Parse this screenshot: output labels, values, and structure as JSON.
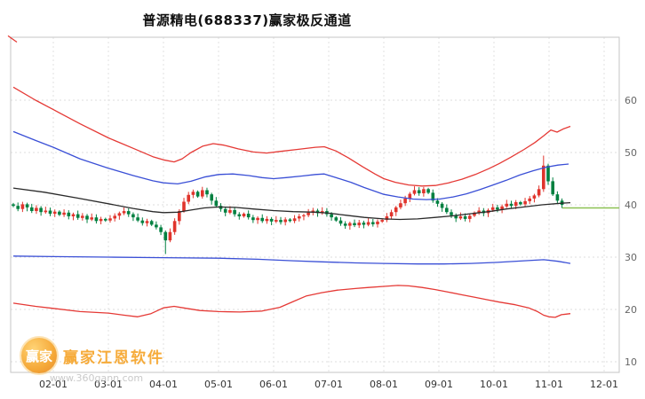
{
  "page": {
    "title": "普源精电(688337)赢家极反通道"
  },
  "watermark": {
    "brand": "赢家江恩软件",
    "url": "www.360gann.com",
    "logo_text": "赢家",
    "brand_color": "#f6a42a",
    "url_color": "#c5c5c5"
  },
  "chart_data": {
    "type": "candlestick",
    "title": "普源精电(688337)赢家极反通道",
    "stock_name": "普源精电",
    "symbol": "688337",
    "indicator": "赢家极反通道",
    "grid": true,
    "legend_position": "none",
    "y_axis": {
      "min": 10,
      "max": 75,
      "ticks": [
        60,
        50,
        40,
        30,
        20,
        10
      ],
      "position": "right"
    },
    "x_axis": {
      "ticks": [
        "02-01",
        "03-01",
        "04-01",
        "05-01",
        "06-01",
        "07-01",
        "08-01",
        "09-01",
        "10-01",
        "11-01",
        "12-01"
      ]
    },
    "candles": {
      "up_color": "#e0342c",
      "down_color": "#008040",
      "closes": [
        39.8,
        39.2,
        40.1,
        39.5,
        38.8,
        39.4,
        38.6,
        38.9,
        38.3,
        38.7,
        38.1,
        38.5,
        37.8,
        38.2,
        37.5,
        37.9,
        37.2,
        37.6,
        36.9,
        37.3,
        37.0,
        37.4,
        37.9,
        38.4,
        38.8,
        38.2,
        37.6,
        37.0,
        36.5,
        36.9,
        36.2,
        35.7,
        34.8,
        33.2,
        34.8,
        36.9,
        38.8,
        40.6,
        41.9,
        42.5,
        41.6,
        42.8,
        42.0,
        40.8,
        39.8,
        39.2,
        38.5,
        39.0,
        38.2,
        37.8,
        38.3,
        37.6,
        37.1,
        37.5,
        36.9,
        37.3,
        36.8,
        37.1,
        36.7,
        37.2,
        36.9,
        37.4,
        37.8,
        38.0,
        38.5,
        38.9,
        38.4,
        38.8,
        38.2,
        37.6,
        37.0,
        36.4,
        36.0,
        36.5,
        36.1,
        36.6,
        36.2,
        36.7,
        36.3,
        36.8,
        37.1,
        37.8,
        38.6,
        39.5,
        40.3,
        41.2,
        42.1,
        42.8,
        42.2,
        43.0,
        42.3,
        40.8,
        40.2,
        39.4,
        38.6,
        38.0,
        37.4,
        37.8,
        37.3,
        37.9,
        38.5,
        38.9,
        38.4,
        39.0,
        39.5,
        39.1,
        39.7,
        40.2,
        39.8,
        40.5,
        40.1,
        40.7,
        41.2,
        41.8,
        43.0,
        47.5,
        44.5,
        42.0,
        40.8,
        40.0
      ],
      "overrides": {
        "33": {
          "low": 30.6
        },
        "115": {
          "high": 49.4
        }
      }
    },
    "series": [
      {
        "name": "upper-channel-red",
        "color": "#e53935",
        "points": [
          [
            15,
            62.5
          ],
          [
            40,
            60.0
          ],
          [
            60,
            58.2
          ],
          [
            90,
            55.5
          ],
          [
            122,
            52.8
          ],
          [
            150,
            50.8
          ],
          [
            172,
            49.2
          ],
          [
            184,
            48.6
          ],
          [
            196,
            48.2
          ],
          [
            205,
            48.8
          ],
          [
            215,
            50.0
          ],
          [
            228,
            51.2
          ],
          [
            240,
            51.7
          ],
          [
            252,
            51.4
          ],
          [
            268,
            50.7
          ],
          [
            285,
            50.1
          ],
          [
            300,
            49.9
          ],
          [
            315,
            50.2
          ],
          [
            335,
            50.6
          ],
          [
            355,
            51.0
          ],
          [
            365,
            51.1
          ],
          [
            378,
            50.3
          ],
          [
            392,
            49.0
          ],
          [
            408,
            47.3
          ],
          [
            422,
            45.9
          ],
          [
            432,
            45.0
          ],
          [
            445,
            44.3
          ],
          [
            460,
            43.8
          ],
          [
            475,
            43.6
          ],
          [
            490,
            43.7
          ],
          [
            505,
            44.2
          ],
          [
            520,
            44.9
          ],
          [
            535,
            45.8
          ],
          [
            550,
            46.9
          ],
          [
            562,
            47.9
          ],
          [
            575,
            49.1
          ],
          [
            590,
            50.6
          ],
          [
            602,
            51.9
          ],
          [
            612,
            53.2
          ],
          [
            620,
            54.3
          ],
          [
            627,
            53.9
          ],
          [
            634,
            54.5
          ],
          [
            642,
            55.0
          ]
        ]
      },
      {
        "name": "upper-channel-blue",
        "color": "#3a4fd6",
        "points": [
          [
            15,
            54.0
          ],
          [
            40,
            52.3
          ],
          [
            60,
            51.0
          ],
          [
            90,
            48.8
          ],
          [
            122,
            47.0
          ],
          [
            150,
            45.6
          ],
          [
            172,
            44.6
          ],
          [
            184,
            44.2
          ],
          [
            200,
            44.0
          ],
          [
            215,
            44.5
          ],
          [
            230,
            45.3
          ],
          [
            246,
            45.8
          ],
          [
            262,
            45.9
          ],
          [
            280,
            45.6
          ],
          [
            295,
            45.2
          ],
          [
            308,
            45.0
          ],
          [
            322,
            45.2
          ],
          [
            340,
            45.5
          ],
          [
            355,
            45.8
          ],
          [
            365,
            45.9
          ],
          [
            378,
            45.2
          ],
          [
            395,
            44.3
          ],
          [
            410,
            43.3
          ],
          [
            425,
            42.4
          ],
          [
            432,
            42.0
          ],
          [
            448,
            41.5
          ],
          [
            465,
            41.1
          ],
          [
            480,
            41.0
          ],
          [
            495,
            41.1
          ],
          [
            510,
            41.5
          ],
          [
            525,
            42.1
          ],
          [
            540,
            42.9
          ],
          [
            555,
            43.8
          ],
          [
            570,
            44.7
          ],
          [
            585,
            45.7
          ],
          [
            600,
            46.5
          ],
          [
            615,
            47.2
          ],
          [
            628,
            47.6
          ],
          [
            640,
            47.8
          ]
        ]
      },
      {
        "name": "mid-line-black",
        "color": "#2a2a2a",
        "points": [
          [
            15,
            43.2
          ],
          [
            50,
            42.4
          ],
          [
            90,
            41.2
          ],
          [
            122,
            40.2
          ],
          [
            150,
            39.3
          ],
          [
            172,
            38.7
          ],
          [
            184,
            38.5
          ],
          [
            200,
            38.6
          ],
          [
            215,
            39.0
          ],
          [
            230,
            39.4
          ],
          [
            246,
            39.6
          ],
          [
            265,
            39.5
          ],
          [
            285,
            39.2
          ],
          [
            308,
            38.9
          ],
          [
            330,
            38.7
          ],
          [
            355,
            38.6
          ],
          [
            370,
            38.4
          ],
          [
            390,
            38.0
          ],
          [
            410,
            37.6
          ],
          [
            432,
            37.3
          ],
          [
            450,
            37.2
          ],
          [
            470,
            37.3
          ],
          [
            490,
            37.6
          ],
          [
            510,
            37.9
          ],
          [
            530,
            38.3
          ],
          [
            550,
            38.7
          ],
          [
            570,
            39.2
          ],
          [
            590,
            39.6
          ],
          [
            610,
            40.0
          ],
          [
            632,
            40.3
          ],
          [
            642,
            40.4
          ]
        ]
      },
      {
        "name": "lower-channel-blue",
        "color": "#3a4fd6",
        "points": [
          [
            15,
            30.2
          ],
          [
            60,
            30.1
          ],
          [
            122,
            30.0
          ],
          [
            184,
            29.9
          ],
          [
            246,
            29.8
          ],
          [
            290,
            29.6
          ],
          [
            330,
            29.3
          ],
          [
            362,
            29.1
          ],
          [
            400,
            28.9
          ],
          [
            432,
            28.8
          ],
          [
            470,
            28.7
          ],
          [
            500,
            28.7
          ],
          [
            530,
            28.8
          ],
          [
            560,
            29.0
          ],
          [
            590,
            29.3
          ],
          [
            612,
            29.5
          ],
          [
            628,
            29.2
          ],
          [
            642,
            28.8
          ]
        ]
      },
      {
        "name": "lower-channel-red",
        "color": "#e53935",
        "points": [
          [
            15,
            21.2
          ],
          [
            40,
            20.6
          ],
          [
            60,
            20.2
          ],
          [
            90,
            19.6
          ],
          [
            122,
            19.3
          ],
          [
            140,
            18.9
          ],
          [
            155,
            18.6
          ],
          [
            170,
            19.2
          ],
          [
            184,
            20.3
          ],
          [
            196,
            20.6
          ],
          [
            210,
            20.2
          ],
          [
            225,
            19.8
          ],
          [
            246,
            19.6
          ],
          [
            270,
            19.5
          ],
          [
            295,
            19.7
          ],
          [
            315,
            20.4
          ],
          [
            330,
            21.5
          ],
          [
            345,
            22.6
          ],
          [
            362,
            23.2
          ],
          [
            380,
            23.7
          ],
          [
            400,
            24.0
          ],
          [
            415,
            24.2
          ],
          [
            432,
            24.4
          ],
          [
            448,
            24.6
          ],
          [
            460,
            24.5
          ],
          [
            475,
            24.2
          ],
          [
            490,
            23.8
          ],
          [
            505,
            23.3
          ],
          [
            520,
            22.8
          ],
          [
            535,
            22.3
          ],
          [
            550,
            21.8
          ],
          [
            562,
            21.4
          ],
          [
            580,
            20.9
          ],
          [
            595,
            20.3
          ],
          [
            605,
            19.6
          ],
          [
            612,
            18.9
          ],
          [
            618,
            18.6
          ],
          [
            625,
            18.5
          ],
          [
            632,
            19.0
          ],
          [
            642,
            19.2
          ]
        ]
      },
      {
        "name": "outer-red-edge",
        "color": "#e53935",
        "points": [
          [
            9,
            72.3
          ],
          [
            19,
            71.1
          ]
        ]
      }
    ],
    "extension_line": {
      "name": "flat-extension-green",
      "color": "#8cc152",
      "value": 39.4,
      "x_from": 633,
      "x_to": 697
    }
  }
}
